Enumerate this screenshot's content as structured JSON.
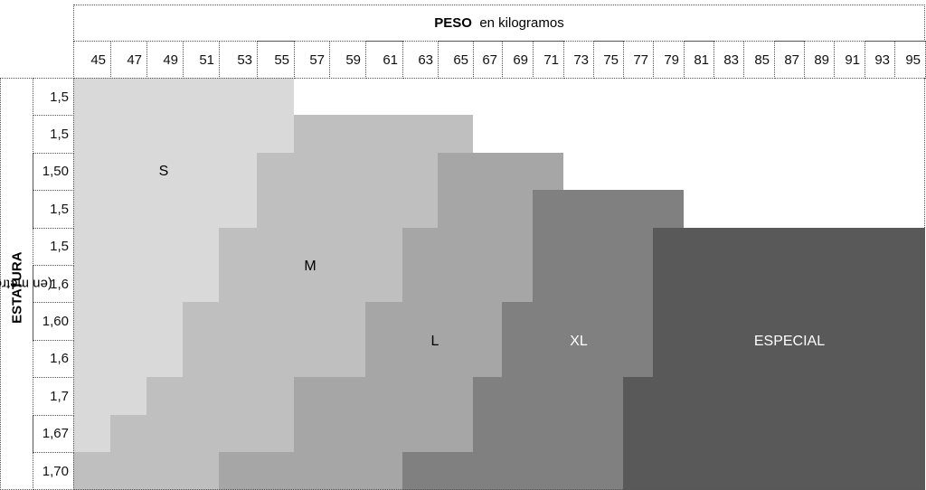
{
  "header": {
    "title_bold": "PESO",
    "title_rest": "en kilogramos"
  },
  "side": {
    "title_bold": "ESTATURA",
    "title_rest": "(en metros)"
  },
  "weights": [
    "45",
    "47",
    "49",
    "51",
    "53",
    "55",
    "57",
    "59",
    "61",
    "63",
    "65",
    "67",
    "69",
    "71",
    "73",
    "75",
    "77",
    "79",
    "81",
    "83",
    "85",
    "87",
    "89",
    "91",
    "93",
    "95"
  ],
  "heights": [
    "1,5",
    "1,5",
    "1,50",
    "1,5",
    "1,5",
    "1,6",
    "1,60",
    "1,6",
    "1,7",
    "1,67",
    "1,70"
  ],
  "sizes": {
    "S": {
      "label": "S",
      "color": "#d9d9d9",
      "text_color": "#000000"
    },
    "M": {
      "label": "M",
      "color": "#bfbfbf",
      "text_color": "#000000"
    },
    "L": {
      "label": "L",
      "color": "#a6a6a6",
      "text_color": "#000000"
    },
    "XL": {
      "label": "XL",
      "color": "#808080",
      "text_color": "#ffffff"
    },
    "E": {
      "label": "ESPECIAL",
      "color": "#595959",
      "text_color": "#ffffff"
    }
  },
  "size_ranges_by_row": [
    [
      [
        "S",
        45,
        55
      ]
    ],
    [
      [
        "S",
        45,
        55
      ],
      [
        "M",
        57,
        65
      ]
    ],
    [
      [
        "S",
        45,
        53
      ],
      [
        "M",
        55,
        63
      ],
      [
        "L",
        65,
        71
      ]
    ],
    [
      [
        "S",
        45,
        53
      ],
      [
        "M",
        55,
        63
      ],
      [
        "L",
        65,
        69
      ],
      [
        "XL",
        71,
        79
      ]
    ],
    [
      [
        "S",
        45,
        51
      ],
      [
        "M",
        53,
        61
      ],
      [
        "L",
        63,
        69
      ],
      [
        "XL",
        71,
        77
      ],
      [
        "E",
        79,
        95
      ]
    ],
    [
      [
        "S",
        45,
        51
      ],
      [
        "M",
        53,
        61
      ],
      [
        "L",
        63,
        69
      ],
      [
        "XL",
        71,
        77
      ],
      [
        "E",
        79,
        95
      ]
    ],
    [
      [
        "S",
        45,
        49
      ],
      [
        "M",
        51,
        59
      ],
      [
        "L",
        61,
        67
      ],
      [
        "XL",
        69,
        77
      ],
      [
        "E",
        79,
        95
      ]
    ],
    [
      [
        "S",
        45,
        49
      ],
      [
        "M",
        51,
        59
      ],
      [
        "L",
        61,
        67
      ],
      [
        "XL",
        69,
        77
      ],
      [
        "E",
        79,
        95
      ]
    ],
    [
      [
        "S",
        45,
        47
      ],
      [
        "M",
        49,
        55
      ],
      [
        "L",
        57,
        65
      ],
      [
        "XL",
        67,
        75
      ],
      [
        "E",
        77,
        95
      ]
    ],
    [
      [
        "S",
        45,
        45
      ],
      [
        "M",
        47,
        55
      ],
      [
        "L",
        57,
        65
      ],
      [
        "XL",
        67,
        75
      ],
      [
        "E",
        77,
        95
      ]
    ],
    [
      [
        "M",
        45,
        51
      ],
      [
        "L",
        53,
        61
      ],
      [
        "XL",
        63,
        75
      ],
      [
        "E",
        77,
        95
      ]
    ]
  ]
}
